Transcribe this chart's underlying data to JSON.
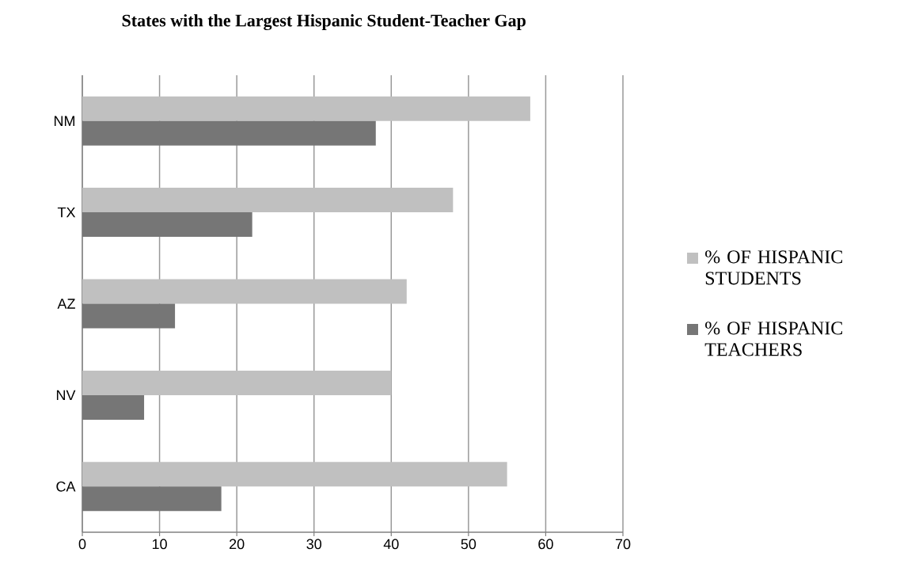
{
  "chart_data": {
    "type": "bar",
    "orientation": "horizontal",
    "title": "States with the Largest Hispanic Student-Teacher Gap",
    "categories": [
      "NM",
      "TX",
      "AZ",
      "NV",
      "CA"
    ],
    "series": [
      {
        "name": "% OF HISPANIC STUDENTS",
        "color": "#c0c0c0",
        "values": [
          58,
          48,
          42,
          40,
          55
        ]
      },
      {
        "name": "% OF HISPANIC TEACHERS",
        "color": "#767676",
        "values": [
          38,
          22,
          12,
          8,
          18
        ]
      }
    ],
    "xlim": [
      0,
      70
    ],
    "xticks": [
      0,
      10,
      20,
      30,
      40,
      50,
      60,
      70
    ],
    "grid": "x",
    "legend": "right"
  }
}
